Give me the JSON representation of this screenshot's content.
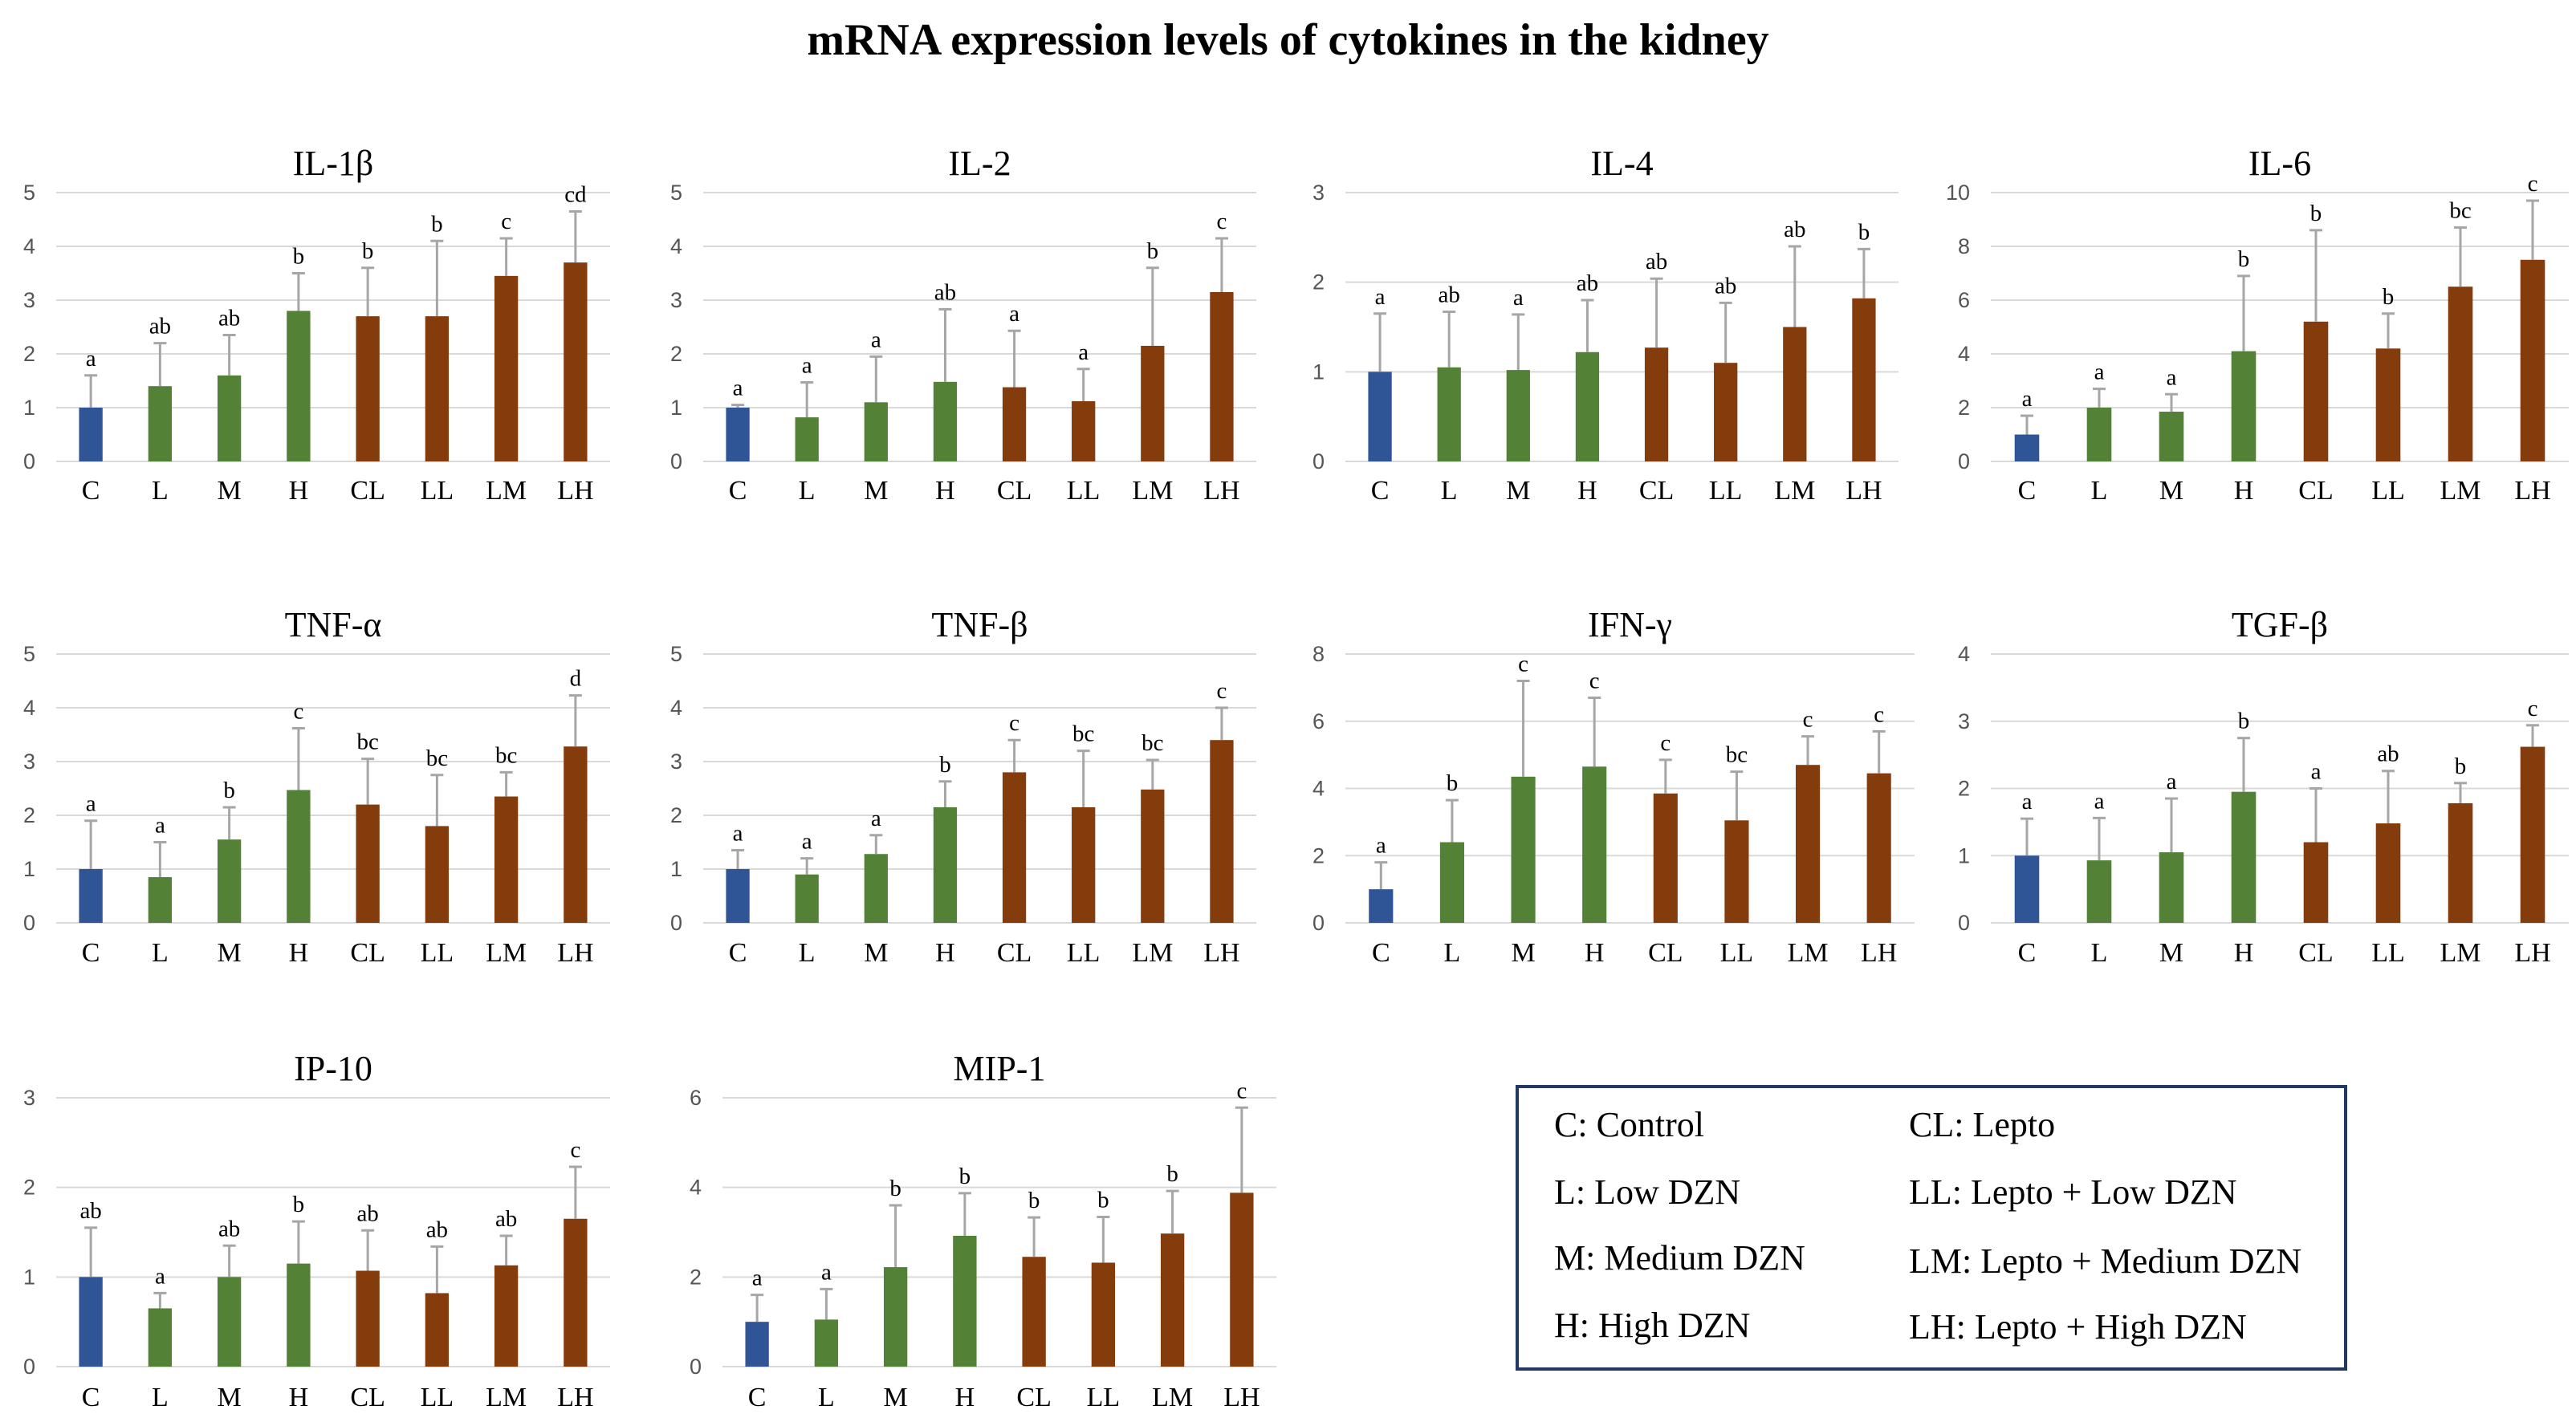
{
  "title": "mRNA expression levels of cytokines in the kidney",
  "colors": {
    "control": "#2f5597",
    "dzn": "#538135",
    "lepto": "#843c0c",
    "error": "#a6a6a6",
    "grid": "#d9d9d9"
  },
  "chart_data": [
    {
      "type": "bar",
      "title": "IL-1β",
      "ylim": [
        0,
        5
      ],
      "yticks": [
        0,
        1,
        2,
        3,
        4,
        5
      ],
      "categories": [
        "C",
        "L",
        "M",
        "H",
        "CL",
        "LL",
        "LM",
        "LH"
      ],
      "values": [
        1.0,
        1.4,
        1.6,
        2.8,
        2.7,
        2.7,
        3.45,
        3.7
      ],
      "errors": [
        0.6,
        0.8,
        0.75,
        0.7,
        0.9,
        1.4,
        0.7,
        0.95
      ],
      "labels": [
        "a",
        "ab",
        "ab",
        "b",
        "b",
        "b",
        "c",
        "cd"
      ]
    },
    {
      "type": "bar",
      "title": "IL-2",
      "ylim": [
        0,
        5
      ],
      "yticks": [
        0,
        1,
        2,
        3,
        4,
        5
      ],
      "categories": [
        "C",
        "L",
        "M",
        "H",
        "CL",
        "LL",
        "LM",
        "LH"
      ],
      "values": [
        1.0,
        0.82,
        1.1,
        1.48,
        1.38,
        1.12,
        2.15,
        3.15
      ],
      "errors": [
        0.05,
        0.65,
        0.85,
        1.35,
        1.05,
        0.6,
        1.45,
        1.0
      ],
      "labels": [
        "a",
        "a",
        "a",
        "ab",
        "a",
        "a",
        "b",
        "c"
      ]
    },
    {
      "type": "bar",
      "title": "IL-4",
      "ylim": [
        0,
        3
      ],
      "yticks": [
        0,
        1,
        2,
        3
      ],
      "categories": [
        "C",
        "L",
        "M",
        "H",
        "CL",
        "LL",
        "LM",
        "LH"
      ],
      "values": [
        1.0,
        1.05,
        1.02,
        1.22,
        1.27,
        1.1,
        1.5,
        1.82
      ],
      "errors": [
        0.65,
        0.62,
        0.62,
        0.58,
        0.77,
        0.67,
        0.9,
        0.55
      ],
      "labels": [
        "a",
        "ab",
        "a",
        "ab",
        "ab",
        "ab",
        "ab",
        "b"
      ]
    },
    {
      "type": "bar",
      "title": "IL-6",
      "ylim": [
        0,
        10
      ],
      "yticks": [
        0,
        2,
        4,
        6,
        8,
        10
      ],
      "categories": [
        "C",
        "L",
        "M",
        "H",
        "CL",
        "LL",
        "LM",
        "LH"
      ],
      "values": [
        1.0,
        2.0,
        1.85,
        4.1,
        5.2,
        4.2,
        6.5,
        7.5
      ],
      "errors": [
        0.7,
        0.7,
        0.65,
        2.8,
        3.4,
        1.3,
        2.2,
        2.2
      ],
      "labels": [
        "a",
        "a",
        "a",
        "b",
        "b",
        "b",
        "bc",
        "c"
      ]
    },
    {
      "type": "bar",
      "title": "TNF-α",
      "ylim": [
        0,
        5
      ],
      "yticks": [
        0,
        1,
        2,
        3,
        4,
        5
      ],
      "categories": [
        "C",
        "L",
        "M",
        "H",
        "CL",
        "LL",
        "LM",
        "LH"
      ],
      "values": [
        1.0,
        0.85,
        1.55,
        2.47,
        2.2,
        1.8,
        2.35,
        3.28
      ],
      "errors": [
        0.9,
        0.65,
        0.6,
        1.15,
        0.85,
        0.95,
        0.45,
        0.95
      ],
      "labels": [
        "a",
        "a",
        "b",
        "c",
        "bc",
        "bc",
        "bc",
        "d"
      ]
    },
    {
      "type": "bar",
      "title": "TNF-β",
      "ylim": [
        0,
        5
      ],
      "yticks": [
        0,
        1,
        2,
        3,
        4,
        5
      ],
      "categories": [
        "C",
        "L",
        "M",
        "H",
        "CL",
        "LL",
        "LM",
        "LH"
      ],
      "values": [
        1.0,
        0.9,
        1.28,
        2.15,
        2.8,
        2.15,
        2.48,
        3.4
      ],
      "errors": [
        0.35,
        0.3,
        0.35,
        0.48,
        0.6,
        1.05,
        0.55,
        0.6
      ],
      "labels": [
        "a",
        "a",
        "a",
        "b",
        "c",
        "bc",
        "bc",
        "c"
      ]
    },
    {
      "type": "bar",
      "title": "IFN-γ",
      "ylim": [
        0,
        8
      ],
      "yticks": [
        0,
        2,
        4,
        6,
        8
      ],
      "categories": [
        "C",
        "L",
        "M",
        "H",
        "CL",
        "LL",
        "LM",
        "LH"
      ],
      "values": [
        1.0,
        2.4,
        4.35,
        4.65,
        3.85,
        3.05,
        4.7,
        4.45
      ],
      "errors": [
        0.8,
        1.25,
        2.85,
        2.05,
        1.0,
        1.45,
        0.85,
        1.25
      ],
      "labels": [
        "a",
        "b",
        "c",
        "c",
        "c",
        "bc",
        "c",
        "c"
      ]
    },
    {
      "type": "bar",
      "title": "TGF-β",
      "ylim": [
        0,
        4
      ],
      "yticks": [
        0,
        1,
        2,
        3,
        4
      ],
      "categories": [
        "C",
        "L",
        "M",
        "H",
        "CL",
        "LL",
        "LM",
        "LH"
      ],
      "values": [
        1.0,
        0.93,
        1.05,
        1.95,
        1.2,
        1.48,
        1.78,
        2.62
      ],
      "errors": [
        0.55,
        0.63,
        0.8,
        0.8,
        0.8,
        0.78,
        0.3,
        0.32
      ],
      "labels": [
        "a",
        "a",
        "a",
        "b",
        "a",
        "ab",
        "b",
        "c"
      ]
    },
    {
      "type": "bar",
      "title": "IP-10",
      "ylim": [
        0,
        3
      ],
      "yticks": [
        0,
        1,
        2,
        3
      ],
      "categories": [
        "C",
        "L",
        "M",
        "H",
        "CL",
        "LL",
        "LM",
        "LH"
      ],
      "values": [
        1.0,
        0.65,
        1.0,
        1.15,
        1.07,
        0.82,
        1.13,
        1.65
      ],
      "errors": [
        0.55,
        0.17,
        0.35,
        0.47,
        0.45,
        0.52,
        0.33,
        0.58
      ],
      "labels": [
        "ab",
        "a",
        "ab",
        "b",
        "ab",
        "ab",
        "ab",
        "c"
      ]
    },
    {
      "type": "bar",
      "title": "MIP-1",
      "ylim": [
        0,
        6
      ],
      "yticks": [
        0,
        2,
        4,
        6
      ],
      "categories": [
        "C",
        "L",
        "M",
        "H",
        "CL",
        "LL",
        "LM",
        "LH"
      ],
      "values": [
        1.0,
        1.05,
        2.22,
        2.92,
        2.45,
        2.32,
        2.97,
        3.88
      ],
      "errors": [
        0.6,
        0.68,
        1.38,
        0.95,
        0.88,
        1.02,
        0.95,
        1.9
      ],
      "labels": [
        "a",
        "a",
        "b",
        "b",
        "b",
        "b",
        "b",
        "c"
      ]
    }
  ],
  "legend": [
    {
      "text": "C: Control"
    },
    {
      "text": "CL: Lepto"
    },
    {
      "text": "L: Low DZN"
    },
    {
      "text": "LL: Lepto + Low DZN"
    },
    {
      "text": "M: Medium DZN"
    },
    {
      "text": "LM: Lepto + Medium DZN"
    },
    {
      "text": "H: High DZN"
    },
    {
      "text": "LH: Lepto + High DZN"
    }
  ]
}
